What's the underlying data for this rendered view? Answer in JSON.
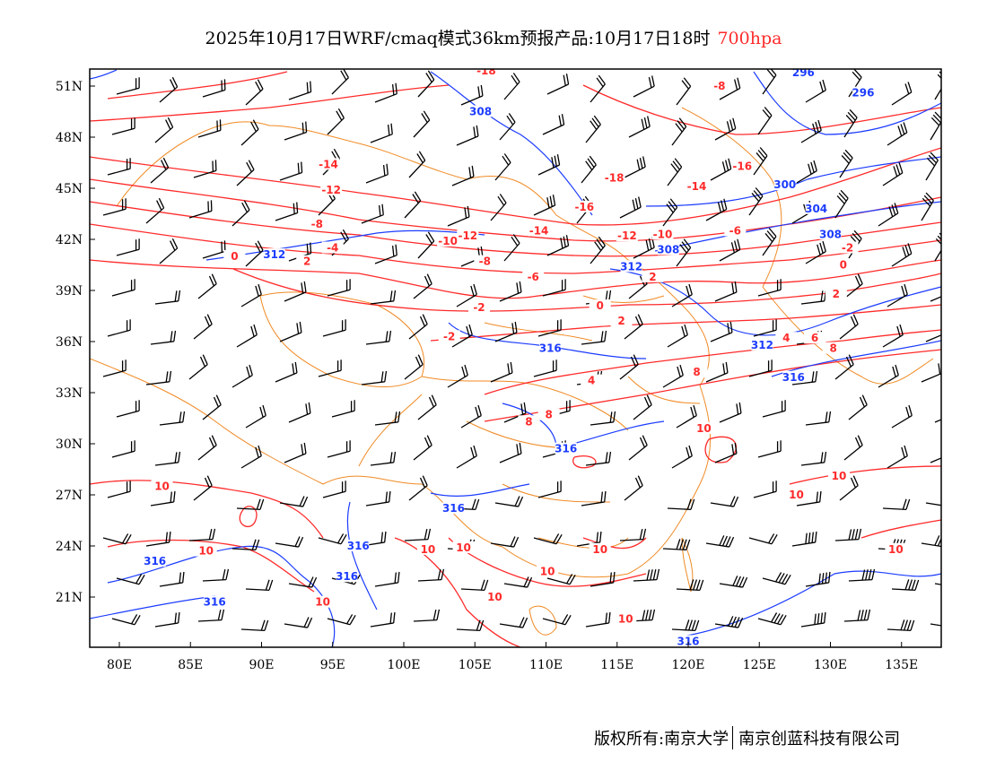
{
  "title": {
    "text": "2025年10月17日WRF/cmaq模式36km预报产品:10月17日18时",
    "level": "700hpa"
  },
  "footer": {
    "left": "版权所有:南京大学",
    "right": "南京创蓝科技有限公司"
  },
  "colors": {
    "temperature": "#ff2a2a",
    "height": "#1c3cff",
    "border": "#f08a24",
    "barb": "#000000"
  },
  "axes": {
    "lon_ticks": [
      {
        "v": 80,
        "t": "80E"
      },
      {
        "v": 85,
        "t": "85E"
      },
      {
        "v": 90,
        "t": "90E"
      },
      {
        "v": 95,
        "t": "95E"
      },
      {
        "v": 100,
        "t": "100E"
      },
      {
        "v": 105,
        "t": "105E"
      },
      {
        "v": 110,
        "t": "110E"
      },
      {
        "v": 115,
        "t": "115E"
      },
      {
        "v": 120,
        "t": "120E"
      },
      {
        "v": 125,
        "t": "125E"
      },
      {
        "v": 130,
        "t": "130E"
      },
      {
        "v": 135,
        "t": "135E"
      }
    ],
    "lat_ticks": [
      {
        "v": 51,
        "t": "51N"
      },
      {
        "v": 48,
        "t": "48N"
      },
      {
        "v": 45,
        "t": "45N"
      },
      {
        "v": 42,
        "t": "42N"
      },
      {
        "v": 39,
        "t": "39N"
      },
      {
        "v": 36,
        "t": "36N"
      },
      {
        "v": 33,
        "t": "33N"
      },
      {
        "v": 30,
        "t": "30N"
      },
      {
        "v": 27,
        "t": "27N"
      },
      {
        "v": 24,
        "t": "24N"
      },
      {
        "v": 21,
        "t": "21N"
      }
    ],
    "lon_range": [
      77.9,
      137.8
    ],
    "lat_range": [
      17.1,
      52.0
    ]
  },
  "temperature_labels": [
    {
      "t": "-14",
      "lon": 94.7,
      "lat": 46.4
    },
    {
      "t": "-12",
      "lon": 94.9,
      "lat": 44.9
    },
    {
      "t": "-8",
      "lon": 93.9,
      "lat": 42.9
    },
    {
      "t": "-4",
      "lon": 95.0,
      "lat": 41.5
    },
    {
      "t": "0",
      "lon": 88.1,
      "lat": 41.0
    },
    {
      "t": "2",
      "lon": 93.2,
      "lat": 40.7
    },
    {
      "t": "-10",
      "lon": 103.1,
      "lat": 41.9
    },
    {
      "t": "-12",
      "lon": 104.5,
      "lat": 42.2
    },
    {
      "t": "-8",
      "lon": 105.7,
      "lat": 40.7
    },
    {
      "t": "-6",
      "lon": 109.1,
      "lat": 39.8
    },
    {
      "t": "-14",
      "lon": 109.5,
      "lat": 42.5
    },
    {
      "t": "-16",
      "lon": 112.7,
      "lat": 43.9
    },
    {
      "t": "-18",
      "lon": 114.8,
      "lat": 45.6
    },
    {
      "t": "-12",
      "lon": 115.7,
      "lat": 42.2
    },
    {
      "t": "-10",
      "lon": 118.2,
      "lat": 42.3
    },
    {
      "t": "-8",
      "lon": 122.2,
      "lat": 51.0
    },
    {
      "t": "-16",
      "lon": 123.8,
      "lat": 46.3
    },
    {
      "t": "-14",
      "lon": 120.6,
      "lat": 45.1
    },
    {
      "t": "-6",
      "lon": 123.3,
      "lat": 42.5
    },
    {
      "t": "-2",
      "lon": 131.2,
      "lat": 41.5
    },
    {
      "t": "0",
      "lon": 130.9,
      "lat": 40.5
    },
    {
      "t": "2",
      "lon": 130.4,
      "lat": 38.8
    },
    {
      "t": "-2",
      "lon": 105.3,
      "lat": 38.0
    },
    {
      "t": "-2",
      "lon": 103.2,
      "lat": 36.3
    },
    {
      "t": "0",
      "lon": 113.8,
      "lat": 38.1
    },
    {
      "t": "2",
      "lon": 117.5,
      "lat": 39.8
    },
    {
      "t": "2",
      "lon": 115.3,
      "lat": 37.2
    },
    {
      "t": "4",
      "lon": 126.9,
      "lat": 36.2
    },
    {
      "t": "6",
      "lon": 128.9,
      "lat": 36.2
    },
    {
      "t": "8",
      "lon": 130.2,
      "lat": 35.6
    },
    {
      "t": "8",
      "lon": 120.6,
      "lat": 34.2
    },
    {
      "t": "4",
      "lon": 113.2,
      "lat": 33.7
    },
    {
      "t": "8",
      "lon": 108.8,
      "lat": 31.3
    },
    {
      "t": "8",
      "lon": 110.2,
      "lat": 31.7
    },
    {
      "t": "10",
      "lon": 121.1,
      "lat": 30.9
    },
    {
      "t": "10",
      "lon": 130.6,
      "lat": 28.1
    },
    {
      "t": "10",
      "lon": 127.6,
      "lat": 27.0
    },
    {
      "t": "10",
      "lon": 83.0,
      "lat": 27.5
    },
    {
      "t": "10",
      "lon": 86.1,
      "lat": 23.7
    },
    {
      "t": "10",
      "lon": 101.7,
      "lat": 23.8
    },
    {
      "t": "10",
      "lon": 104.2,
      "lat": 23.9
    },
    {
      "t": "10",
      "lon": 113.8,
      "lat": 23.8
    },
    {
      "t": "10",
      "lon": 110.1,
      "lat": 22.5
    },
    {
      "t": "10",
      "lon": 106.4,
      "lat": 21.0
    },
    {
      "t": "10",
      "lon": 94.3,
      "lat": 20.7
    },
    {
      "t": "10",
      "lon": 115.6,
      "lat": 19.7
    },
    {
      "t": "10",
      "lon": 134.6,
      "lat": 23.8
    },
    {
      "t": "-18",
      "lon": 105.8,
      "lat": 51.9
    }
  ],
  "height_labels": [
    {
      "t": "308",
      "lon": 105.4,
      "lat": 49.5
    },
    {
      "t": "296",
      "lon": 128.1,
      "lat": 51.8
    },
    {
      "t": "296",
      "lon": 132.3,
      "lat": 50.6
    },
    {
      "t": "300",
      "lon": 126.8,
      "lat": 45.2
    },
    {
      "t": "304",
      "lon": 129.0,
      "lat": 43.8
    },
    {
      "t": "308",
      "lon": 130.0,
      "lat": 42.3
    },
    {
      "t": "312",
      "lon": 90.9,
      "lat": 41.1
    },
    {
      "t": "312",
      "lon": 116.0,
      "lat": 40.4
    },
    {
      "t": "308",
      "lon": 118.6,
      "lat": 41.4
    },
    {
      "t": "312",
      "lon": 125.2,
      "lat": 35.8
    },
    {
      "t": "316",
      "lon": 127.4,
      "lat": 33.9
    },
    {
      "t": "316",
      "lon": 110.3,
      "lat": 35.6
    },
    {
      "t": "316",
      "lon": 111.4,
      "lat": 29.7
    },
    {
      "t": "316",
      "lon": 103.5,
      "lat": 26.2
    },
    {
      "t": "316",
      "lon": 96.8,
      "lat": 24.0
    },
    {
      "t": "316",
      "lon": 82.5,
      "lat": 23.1
    },
    {
      "t": "316",
      "lon": 96.0,
      "lat": 22.2
    },
    {
      "t": "316",
      "lon": 86.7,
      "lat": 20.7
    },
    {
      "t": "316",
      "lon": 120.0,
      "lat": 18.4
    }
  ]
}
